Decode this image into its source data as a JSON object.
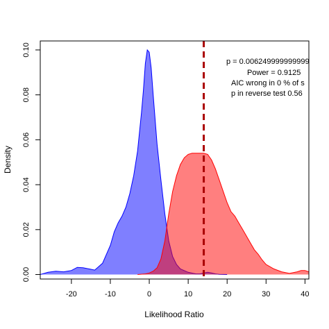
{
  "chart_data": {
    "type": "area",
    "title": "",
    "xlabel": "Likelihood Ratio",
    "ylabel": "Density",
    "xlim": [
      -28,
      41
    ],
    "ylim": [
      -0.002,
      0.104
    ],
    "x_ticks": [
      -20,
      -10,
      0,
      10,
      20,
      30,
      40
    ],
    "x_tick_labels": [
      "-20",
      "-10",
      "0",
      "10",
      "20",
      "30",
      "40"
    ],
    "y_ticks": [
      0.0,
      0.02,
      0.04,
      0.06,
      0.08,
      0.1
    ],
    "y_tick_labels": [
      "0.00",
      "0.02",
      "0.04",
      "0.06",
      "0.08",
      "0.10"
    ],
    "grid": false,
    "legend": "none",
    "series": [
      {
        "color": "#0000ff",
        "x": [
          -28,
          -26,
          -24,
          -22,
          -20,
          -18.5,
          -17,
          -15.5,
          -14,
          -12,
          -10,
          -9,
          -8,
          -7,
          -6,
          -5,
          -4,
          -3,
          -2,
          -1.5,
          -1,
          -0.5,
          0,
          0.5,
          1,
          1.5,
          2,
          3,
          4,
          5,
          6,
          7,
          8,
          10,
          12,
          13,
          14,
          15,
          16,
          17,
          18,
          20
        ],
        "y": [
          0.0,
          0.001,
          0.0015,
          0.0012,
          0.0018,
          0.0032,
          0.003,
          0.0025,
          0.002,
          0.005,
          0.013,
          0.019,
          0.023,
          0.026,
          0.03,
          0.036,
          0.044,
          0.055,
          0.072,
          0.082,
          0.094,
          0.1,
          0.099,
          0.092,
          0.08,
          0.069,
          0.058,
          0.042,
          0.027,
          0.015,
          0.008,
          0.0045,
          0.0025,
          0.001,
          0.0003,
          0.0003,
          0.0007,
          0.001,
          0.0007,
          0.0003,
          0.0001,
          0.0
        ]
      },
      {
        "color": "#ff0000",
        "x": [
          -3,
          -1,
          0,
          1,
          2,
          3,
          4,
          5,
          6,
          7,
          8,
          9,
          10,
          11,
          12,
          13,
          14,
          15,
          16,
          17,
          18,
          19,
          20,
          21,
          22,
          23,
          24,
          25,
          26,
          27,
          28,
          29,
          30,
          32,
          34,
          36,
          38,
          39,
          40,
          41
        ],
        "y": [
          0.0,
          0.0003,
          0.0007,
          0.0015,
          0.003,
          0.007,
          0.015,
          0.027,
          0.037,
          0.044,
          0.049,
          0.052,
          0.0535,
          0.054,
          0.054,
          0.054,
          0.054,
          0.0535,
          0.051,
          0.047,
          0.042,
          0.037,
          0.032,
          0.028,
          0.026,
          0.023,
          0.02,
          0.017,
          0.014,
          0.011,
          0.009,
          0.0065,
          0.0045,
          0.0025,
          0.0012,
          0.0005,
          0.0012,
          0.0018,
          0.0018,
          0.0012
        ]
      }
    ],
    "vline": {
      "x": 14,
      "color": "#aa0000"
    },
    "annotations": [
      "p =  0.006249999999999",
      "Power =  0.9125",
      "AIC wrong in  0 % of s",
      "p in reverse test  0.56"
    ]
  }
}
